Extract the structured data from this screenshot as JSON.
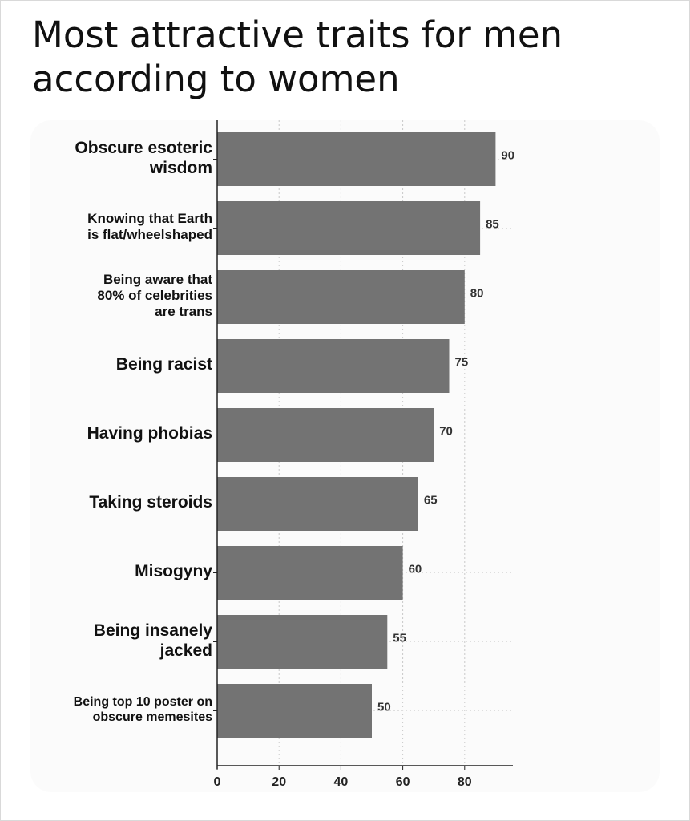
{
  "title_lines": [
    "Most attractive traits for men",
    "according to women"
  ],
  "chart_data": {
    "type": "bar",
    "orientation": "horizontal",
    "categories": [
      "Obscure esoteric\nwisdom",
      "Knowing that Earth\nis flat/wheelshaped",
      "Being aware that\n80% of celebrities\nare trans",
      "Being racist",
      "Having phobias",
      "Taking steroids",
      "Misogyny",
      "Being insanely\njacked",
      "Being top 10 poster on\nobscure memesites"
    ],
    "values": [
      90,
      85,
      80,
      75,
      70,
      65,
      60,
      55,
      50
    ],
    "data_labels": [
      "90",
      "85",
      "80",
      "75",
      "70",
      "65",
      "60",
      "55",
      "50"
    ],
    "xticks": [
      0,
      20,
      40,
      60,
      80
    ],
    "xlim": [
      0,
      95
    ],
    "xlabel": "",
    "ylabel": "",
    "grid": "vertical dotted",
    "bar_color": "#737373"
  }
}
